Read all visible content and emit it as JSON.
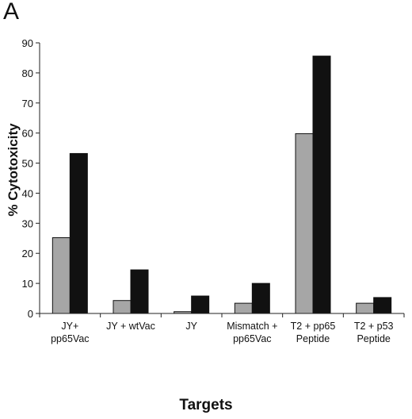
{
  "panel_label": "A",
  "chart_data": {
    "type": "bar",
    "categories": [
      [
        "JY+",
        "pp65Vac"
      ],
      [
        "JY + wtVac"
      ],
      [
        "JY"
      ],
      [
        "Mismatch +",
        "pp65Vac"
      ],
      [
        "T2 + pp65",
        "Peptide"
      ],
      [
        "T2 + p53",
        "Peptide"
      ]
    ],
    "series": [
      {
        "values": [
          25.2,
          4.3,
          0.6,
          3.4,
          59.8,
          3.4
        ],
        "color": "#a6a6a6"
      },
      {
        "values": [
          53.2,
          14.5,
          5.8,
          10.0,
          85.6,
          5.3
        ],
        "color": "#111111"
      }
    ],
    "title": "",
    "xlabel": "Targets",
    "ylabel": "% Cytotoxicity",
    "ylim": [
      0,
      90
    ],
    "yticks": [
      0,
      10,
      20,
      30,
      40,
      50,
      60,
      70,
      80,
      90
    ],
    "grid": false,
    "legend": "none"
  }
}
